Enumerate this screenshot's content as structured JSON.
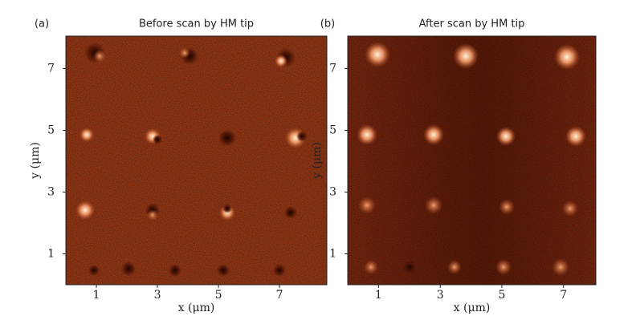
{
  "chart_data": [
    {
      "type": "image",
      "panel": "(a)",
      "title": "Before scan by HM tip",
      "xlabel": "x (μm)",
      "ylabel": "y (μm)",
      "xlim": [
        0,
        8.55
      ],
      "ylim": [
        0,
        8.05
      ],
      "xticks": [
        1,
        3,
        5,
        7
      ],
      "yticks": [
        1,
        3,
        5,
        7
      ]
    },
    {
      "type": "image",
      "panel": "(b)",
      "title": "After scan by HM tip",
      "xlabel": "x (μm)",
      "ylabel": "y (μm)",
      "xlim": [
        0,
        8.05
      ],
      "ylim": [
        0,
        8.05
      ],
      "xticks": [
        1,
        3,
        5,
        7
      ],
      "yticks": [
        1,
        3,
        5,
        7
      ]
    }
  ]
}
